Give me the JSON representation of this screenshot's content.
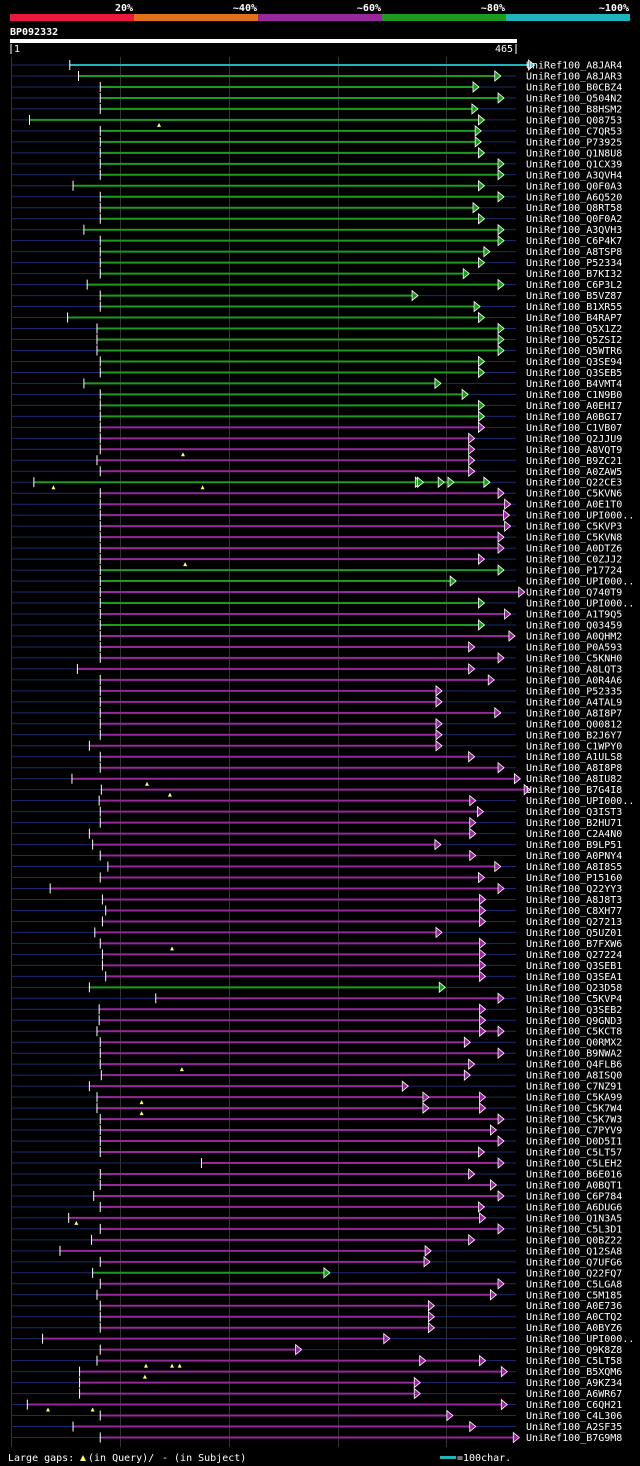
{
  "chart_data": {
    "type": "alignment-overview",
    "query_id": "BP092332",
    "axis": {
      "start": "1",
      "end": "465",
      "length": 465
    },
    "identity_legend": [
      {
        "label": "20%",
        "color": "#e8193c"
      },
      {
        "label": "~40%",
        "color": "#e0701b"
      },
      {
        "label": "~60%",
        "color": "#96279c"
      },
      {
        "label": "~80%",
        "color": "#1e9b1e"
      },
      {
        "label": "~100%",
        "color": "#1eb4be"
      }
    ],
    "scale_text": "=100char.",
    "gap_legend": {
      "prefix": "Large gaps:",
      "query": "(in Query)/",
      "subject": "- (in Subject)"
    },
    "hits": [
      {
        "id": "UniRef100_A8JAR4",
        "s": 55,
        "e": 482,
        "c": "#1eb4be"
      },
      {
        "id": "UniRef100_A8JAR3",
        "s": 63,
        "e": 451,
        "c": "#1e9b1e"
      },
      {
        "id": "UniRef100_B0CBZ4",
        "s": 83,
        "e": 431,
        "c": "#1e9b1e"
      },
      {
        "id": "UniRef100_Q504N2",
        "s": 83,
        "e": 454,
        "c": "#1e9b1e"
      },
      {
        "id": "UniRef100_B8HSM2",
        "s": 83,
        "e": 430,
        "c": "#1e9b1e"
      },
      {
        "id": "UniRef100_Q08753",
        "s": 18,
        "e": 436,
        "c": "#1e9b1e",
        "g": [
          137
        ]
      },
      {
        "id": "UniRef100_C7QR53",
        "s": 83,
        "e": 433,
        "c": "#1e9b1e"
      },
      {
        "id": "UniRef100_P73925",
        "s": 83,
        "e": 433,
        "c": "#1e9b1e"
      },
      {
        "id": "UniRef100_Q1N8U8",
        "s": 83,
        "e": 436,
        "c": "#1e9b1e"
      },
      {
        "id": "UniRef100_Q1CX39",
        "s": 83,
        "e": 454,
        "c": "#1e9b1e"
      },
      {
        "id": "UniRef100_A3QVH4",
        "s": 83,
        "e": 454,
        "c": "#1e9b1e"
      },
      {
        "id": "UniRef100_Q0F0A3",
        "s": 58,
        "e": 436,
        "c": "#1e9b1e"
      },
      {
        "id": "UniRef100_A6Q520",
        "s": 83,
        "e": 454,
        "c": "#1e9b1e"
      },
      {
        "id": "UniRef100_Q8RT58",
        "s": 83,
        "e": 431,
        "c": "#1e9b1e"
      },
      {
        "id": "UniRef100_Q0F0A2",
        "s": 83,
        "e": 436,
        "c": "#1e9b1e"
      },
      {
        "id": "UniRef100_A3QVH3",
        "s": 68,
        "e": 454,
        "c": "#1e9b1e"
      },
      {
        "id": "UniRef100_C6P4K7",
        "s": 83,
        "e": 454,
        "c": "#1e9b1e"
      },
      {
        "id": "UniRef100_A8TSP8",
        "s": 83,
        "e": 441,
        "c": "#1e9b1e"
      },
      {
        "id": "UniRef100_P52334",
        "s": 83,
        "e": 436,
        "c": "#1e9b1e"
      },
      {
        "id": "UniRef100_B7KI32",
        "s": 83,
        "e": 422,
        "c": "#1e9b1e"
      },
      {
        "id": "UniRef100_C6P3L2",
        "s": 71,
        "e": 454,
        "c": "#1e9b1e"
      },
      {
        "id": "UniRef100_B5VZ87",
        "s": 83,
        "e": 375,
        "c": "#1e9b1e"
      },
      {
        "id": "UniRef100_B1XR55",
        "s": 83,
        "e": 432,
        "c": "#1e9b1e"
      },
      {
        "id": "UniRef100_B4RAP7",
        "s": 53,
        "e": 436,
        "c": "#1e9b1e"
      },
      {
        "id": "UniRef100_Q5X1Z2",
        "s": 80,
        "e": 454,
        "c": "#1e9b1e"
      },
      {
        "id": "UniRef100_Q5ZSI2",
        "s": 80,
        "e": 454,
        "c": "#1e9b1e"
      },
      {
        "id": "UniRef100_Q5WTR6",
        "s": 80,
        "e": 454,
        "c": "#1e9b1e"
      },
      {
        "id": "UniRef100_Q3SE94",
        "s": 83,
        "e": 436,
        "c": "#1e9b1e"
      },
      {
        "id": "UniRef100_Q3SEB5",
        "s": 83,
        "e": 436,
        "c": "#1e9b1e"
      },
      {
        "id": "UniRef100_B4VMT4",
        "s": 68,
        "e": 396,
        "c": "#1e9b1e"
      },
      {
        "id": "UniRef100_C1N9B0",
        "s": 83,
        "e": 421,
        "c": "#1e9b1e"
      },
      {
        "id": "UniRef100_A0EHI7",
        "s": 83,
        "e": 436,
        "c": "#1e9b1e"
      },
      {
        "id": "UniRef100_A0BGI7",
        "s": 83,
        "e": 436,
        "c": "#1e9b1e"
      },
      {
        "id": "UniRef100_C1VB07",
        "s": 83,
        "e": 436,
        "c": "#96279c"
      },
      {
        "id": "UniRef100_Q2JJU9",
        "s": 83,
        "e": 427,
        "c": "#96279c"
      },
      {
        "id": "UniRef100_A8VQT9",
        "s": 83,
        "e": 427,
        "c": "#96279c",
        "g": [
          159
        ]
      },
      {
        "id": "UniRef100_B9ZC21",
        "s": 80,
        "e": 427,
        "c": "#96279c"
      },
      {
        "id": "UniRef100_A0ZAW5",
        "s": 83,
        "e": 427,
        "c": "#96279c"
      },
      {
        "id": "UniRef100_Q22CE3",
        "s": 22,
        "e": 441,
        "c": "#1e9b1e",
        "g": [
          40,
          177
        ],
        "a": [
          378,
          380,
          399,
          408,
          441
        ]
      },
      {
        "id": "UniRef100_C5KVN6",
        "s": 83,
        "e": 454,
        "c": "#96279c"
      },
      {
        "id": "UniRef100_A0E1T0",
        "s": 83,
        "e": 460,
        "c": "#96279c"
      },
      {
        "id": "UniRef100_UPI000..",
        "s": 83,
        "e": 459,
        "c": "#96279c"
      },
      {
        "id": "UniRef100_C5KVP3",
        "s": 83,
        "e": 460,
        "c": "#96279c"
      },
      {
        "id": "UniRef100_C5KVN8",
        "s": 83,
        "e": 454,
        "c": "#96279c"
      },
      {
        "id": "UniRef100_A0DTZ6",
        "s": 83,
        "e": 454,
        "c": "#96279c"
      },
      {
        "id": "UniRef100_C0ZJJ2",
        "s": 83,
        "e": 436,
        "c": "#96279c",
        "g": [
          161
        ]
      },
      {
        "id": "UniRef100_P17724",
        "s": 83,
        "e": 454,
        "c": "#1e9b1e"
      },
      {
        "id": "UniRef100_UPI000..",
        "s": 83,
        "e": 410,
        "c": "#1e9b1e"
      },
      {
        "id": "UniRef100_Q740T9",
        "s": 83,
        "e": 473,
        "c": "#96279c"
      },
      {
        "id": "UniRef100_UPI000..",
        "s": 83,
        "e": 436,
        "c": "#1e9b1e"
      },
      {
        "id": "UniRef100_A1T9Q5",
        "s": 83,
        "e": 460,
        "c": "#96279c"
      },
      {
        "id": "UniRef100_Q03459",
        "s": 83,
        "e": 436,
        "c": "#1e9b1e"
      },
      {
        "id": "UniRef100_A0QHM2",
        "s": 83,
        "e": 464,
        "c": "#96279c"
      },
      {
        "id": "UniRef100_P0A593",
        "s": 83,
        "e": 427,
        "c": "#96279c"
      },
      {
        "id": "UniRef100_C5KNH0",
        "s": 83,
        "e": 454,
        "c": "#96279c"
      },
      {
        "id": "UniRef100_A8LQT3",
        "s": 62,
        "e": 427,
        "c": "#96279c"
      },
      {
        "id": "UniRef100_A0R4A6",
        "s": 83,
        "e": 445,
        "c": "#96279c"
      },
      {
        "id": "UniRef100_P52335",
        "s": 83,
        "e": 397,
        "c": "#96279c"
      },
      {
        "id": "UniRef100_A4TAL9",
        "s": 83,
        "e": 397,
        "c": "#96279c"
      },
      {
        "id": "UniRef100_A8I8P7",
        "s": 83,
        "e": 451,
        "c": "#96279c"
      },
      {
        "id": "UniRef100_Q00812",
        "s": 83,
        "e": 397,
        "c": "#96279c"
      },
      {
        "id": "UniRef100_B2J6Y7",
        "s": 83,
        "e": 397,
        "c": "#96279c"
      },
      {
        "id": "UniRef100_C1WPY0",
        "s": 73,
        "e": 397,
        "c": "#96279c"
      },
      {
        "id": "UniRef100_A1ULS8",
        "s": 83,
        "e": 427,
        "c": "#96279c"
      },
      {
        "id": "UniRef100_A8I8P8",
        "s": 83,
        "e": 454,
        "c": "#96279c"
      },
      {
        "id": "UniRef100_A8IU82",
        "s": 57,
        "e": 469,
        "c": "#96279c",
        "g": [
          126
        ]
      },
      {
        "id": "UniRef100_B7G4I8",
        "s": 84,
        "e": 478,
        "c": "#96279c",
        "g": [
          147
        ]
      },
      {
        "id": "UniRef100_UPI000..",
        "s": 82,
        "e": 428,
        "c": "#96279c"
      },
      {
        "id": "UniRef100_Q3IST3",
        "s": 83,
        "e": 435,
        "c": "#96279c"
      },
      {
        "id": "UniRef100_B2HU71",
        "s": 83,
        "e": 428,
        "c": "#96279c"
      },
      {
        "id": "UniRef100_C2A4N0",
        "s": 73,
        "e": 428,
        "c": "#96279c"
      },
      {
        "id": "UniRef100_B9LP51",
        "s": 76,
        "e": 396,
        "c": "#96279c"
      },
      {
        "id": "UniRef100_A0PNY4",
        "s": 83,
        "e": 428,
        "c": "#96279c"
      },
      {
        "id": "UniRef100_A8I8S5",
        "s": 90,
        "e": 451,
        "c": "#96279c"
      },
      {
        "id": "UniRef100_P15160",
        "s": 83,
        "e": 436,
        "c": "#96279c"
      },
      {
        "id": "UniRef100_Q22YY3",
        "s": 37,
        "e": 454,
        "c": "#96279c"
      },
      {
        "id": "UniRef100_A8J8T3",
        "s": 85,
        "e": 437,
        "c": "#96279c"
      },
      {
        "id": "UniRef100_C8XH77",
        "s": 88,
        "e": 437,
        "c": "#96279c"
      },
      {
        "id": "UniRef100_Q27213",
        "s": 85,
        "e": 437,
        "c": "#96279c"
      },
      {
        "id": "UniRef100_Q5UZ01",
        "s": 78,
        "e": 397,
        "c": "#96279c"
      },
      {
        "id": "UniRef100_B7FXW6",
        "s": 83,
        "e": 437,
        "c": "#96279c",
        "g": [
          149
        ]
      },
      {
        "id": "UniRef100_Q27224",
        "s": 85,
        "e": 437,
        "c": "#96279c"
      },
      {
        "id": "UniRef100_Q3SEB1",
        "s": 85,
        "e": 437,
        "c": "#96279c"
      },
      {
        "id": "UniRef100_Q3SEA1",
        "s": 88,
        "e": 437,
        "c": "#96279c"
      },
      {
        "id": "UniRef100_Q23D58",
        "s": 73,
        "e": 400,
        "c": "#1e9b1e"
      },
      {
        "id": "UniRef100_C5KVP4",
        "s": 134,
        "e": 454,
        "c": "#96279c"
      },
      {
        "id": "UniRef100_Q3SEB2",
        "s": 82,
        "e": 437,
        "c": "#96279c"
      },
      {
        "id": "UniRef100_Q9GND3",
        "s": 82,
        "e": 437,
        "c": "#96279c"
      },
      {
        "id": "UniRef100_C5KCT8",
        "s": 80,
        "e": 454,
        "c": "#96279c",
        "a": [
          437
        ]
      },
      {
        "id": "UniRef100_Q0RMX2",
        "s": 83,
        "e": 423,
        "c": "#96279c"
      },
      {
        "id": "UniRef100_B9NWA2",
        "s": 83,
        "e": 454,
        "c": "#96279c"
      },
      {
        "id": "UniRef100_Q4FLB6",
        "s": 83,
        "e": 427,
        "c": "#96279c",
        "g": [
          158
        ]
      },
      {
        "id": "UniRef100_A8ISQ0",
        "s": 84,
        "e": 423,
        "c": "#96279c"
      },
      {
        "id": "UniRef100_C7NZ91",
        "s": 73,
        "e": 366,
        "c": "#96279c"
      },
      {
        "id": "UniRef100_C5KA99",
        "s": 80,
        "e": 437,
        "c": "#96279c",
        "g": [
          121
        ],
        "a": [
          385
        ]
      },
      {
        "id": "UniRef100_C5K7W4",
        "s": 80,
        "e": 437,
        "c": "#96279c",
        "g": [
          121
        ],
        "a": [
          385
        ]
      },
      {
        "id": "UniRef100_C5K7W3",
        "s": 83,
        "e": 454,
        "c": "#96279c"
      },
      {
        "id": "UniRef100_C7PYV9",
        "s": 83,
        "e": 447,
        "c": "#96279c"
      },
      {
        "id": "UniRef100_D0D5I1",
        "s": 83,
        "e": 454,
        "c": "#96279c"
      },
      {
        "id": "UniRef100_C5LT57",
        "s": 83,
        "e": 436,
        "c": "#96279c"
      },
      {
        "id": "UniRef100_C5LEH2",
        "s": 176,
        "e": 454,
        "c": "#96279c"
      },
      {
        "id": "UniRef100_B6E016",
        "s": 83,
        "e": 427,
        "c": "#96279c"
      },
      {
        "id": "UniRef100_A0BQT1",
        "s": 83,
        "e": 447,
        "c": "#96279c"
      },
      {
        "id": "UniRef100_C6P784",
        "s": 77,
        "e": 454,
        "c": "#96279c"
      },
      {
        "id": "UniRef100_A6DUG6",
        "s": 83,
        "e": 436,
        "c": "#96279c"
      },
      {
        "id": "UniRef100_Q1N3A5",
        "s": 54,
        "e": 437,
        "c": "#96279c",
        "g": [
          61
        ]
      },
      {
        "id": "UniRef100_C5L3D1",
        "s": 83,
        "e": 454,
        "c": "#96279c"
      },
      {
        "id": "UniRef100_Q0BZ22",
        "s": 75,
        "e": 427,
        "c": "#96279c"
      },
      {
        "id": "UniRef100_Q12SA8",
        "s": 46,
        "e": 387,
        "c": "#96279c"
      },
      {
        "id": "UniRef100_Q7UFG6",
        "s": 83,
        "e": 386,
        "c": "#96279c"
      },
      {
        "id": "UniRef100_Q22FQ7",
        "s": 76,
        "e": 294,
        "c": "#1e9b1e"
      },
      {
        "id": "UniRef100_C5LGA8",
        "s": 83,
        "e": 454,
        "c": "#96279c"
      },
      {
        "id": "UniRef100_C5M185",
        "s": 80,
        "e": 447,
        "c": "#96279c"
      },
      {
        "id": "UniRef100_A0E736",
        "s": 83,
        "e": 390,
        "c": "#96279c"
      },
      {
        "id": "UniRef100_A0CTQ2",
        "s": 83,
        "e": 390,
        "c": "#96279c"
      },
      {
        "id": "UniRef100_A0BYZ6",
        "s": 83,
        "e": 390,
        "c": "#96279c"
      },
      {
        "id": "UniRef100_UPI000..",
        "s": 30,
        "e": 349,
        "c": "#96279c"
      },
      {
        "id": "UniRef100_Q9K8Z8",
        "s": 83,
        "e": 268,
        "c": "#96279c"
      },
      {
        "id": "UniRef100_C5LT58",
        "s": 80,
        "e": 437,
        "c": "#96279c",
        "g": [
          125,
          149,
          156
        ],
        "a": [
          382
        ]
      },
      {
        "id": "UniRef100_B5XQM6",
        "s": 64,
        "e": 457,
        "c": "#96279c",
        "g": [
          124
        ]
      },
      {
        "id": "UniRef100_A9KZ34",
        "s": 64,
        "e": 377,
        "c": "#96279c"
      },
      {
        "id": "UniRef100_A6WR67",
        "s": 64,
        "e": 377,
        "c": "#96279c"
      },
      {
        "id": "UniRef100_C6QH21",
        "s": 16,
        "e": 457,
        "c": "#96279c",
        "g": [
          35,
          76
        ]
      },
      {
        "id": "UniRef100_C4L306",
        "s": 83,
        "e": 407,
        "c": "#96279c"
      },
      {
        "id": "UniRef100_A2SF35",
        "s": 58,
        "e": 428,
        "c": "#96279c"
      },
      {
        "id": "UniRef100_B7G9M8",
        "s": 83,
        "e": 468,
        "c": "#96279c"
      }
    ]
  }
}
